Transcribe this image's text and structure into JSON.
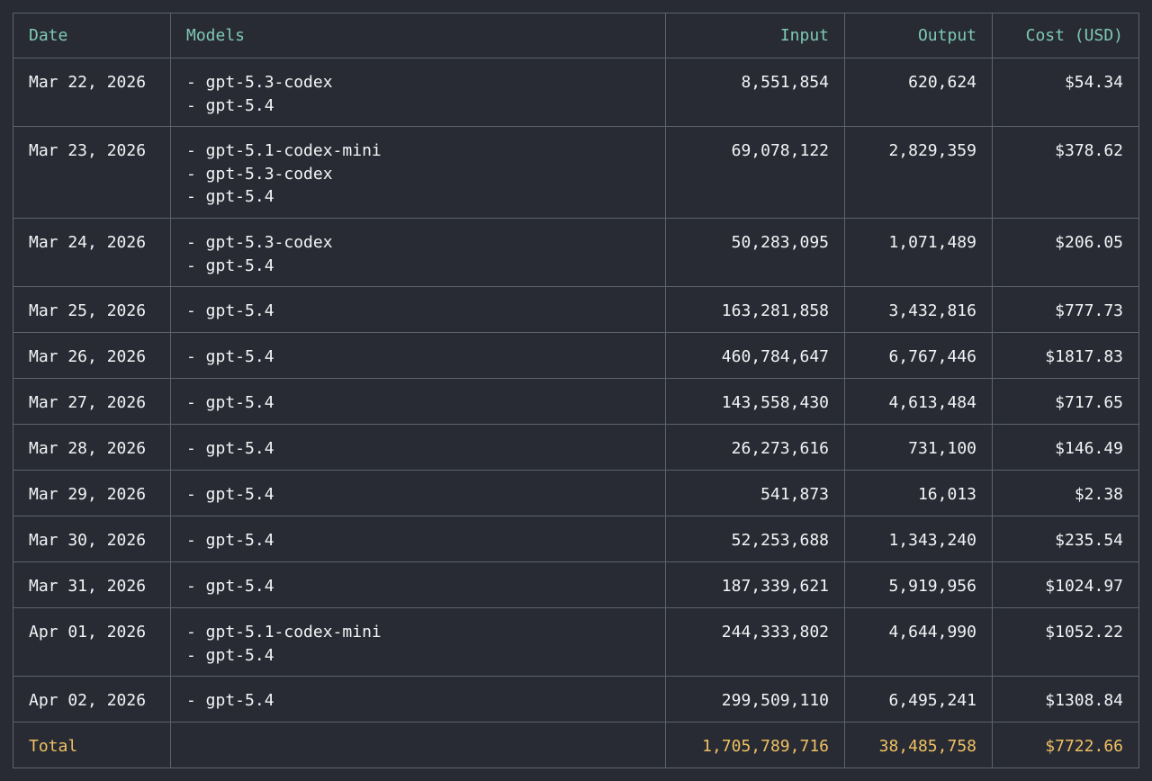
{
  "columns": {
    "date": "Date",
    "models": "Models",
    "input": "Input",
    "output": "Output",
    "cost": "Cost (USD)"
  },
  "rows": [
    {
      "date": "Mar 22, 2026",
      "models": [
        "- gpt-5.3-codex",
        "- gpt-5.4"
      ],
      "input": "8,551,854",
      "output": "620,624",
      "cost": "$54.34"
    },
    {
      "date": "Mar 23, 2026",
      "models": [
        "- gpt-5.1-codex-mini",
        "- gpt-5.3-codex",
        "- gpt-5.4"
      ],
      "input": "69,078,122",
      "output": "2,829,359",
      "cost": "$378.62"
    },
    {
      "date": "Mar 24, 2026",
      "models": [
        "- gpt-5.3-codex",
        "- gpt-5.4"
      ],
      "input": "50,283,095",
      "output": "1,071,489",
      "cost": "$206.05"
    },
    {
      "date": "Mar 25, 2026",
      "models": [
        "- gpt-5.4"
      ],
      "input": "163,281,858",
      "output": "3,432,816",
      "cost": "$777.73"
    },
    {
      "date": "Mar 26, 2026",
      "models": [
        "- gpt-5.4"
      ],
      "input": "460,784,647",
      "output": "6,767,446",
      "cost": "$1817.83"
    },
    {
      "date": "Mar 27, 2026",
      "models": [
        "- gpt-5.4"
      ],
      "input": "143,558,430",
      "output": "4,613,484",
      "cost": "$717.65"
    },
    {
      "date": "Mar 28, 2026",
      "models": [
        "- gpt-5.4"
      ],
      "input": "26,273,616",
      "output": "731,100",
      "cost": "$146.49"
    },
    {
      "date": "Mar 29, 2026",
      "models": [
        "- gpt-5.4"
      ],
      "input": "541,873",
      "output": "16,013",
      "cost": "$2.38"
    },
    {
      "date": "Mar 30, 2026",
      "models": [
        "- gpt-5.4"
      ],
      "input": "52,253,688",
      "output": "1,343,240",
      "cost": "$235.54"
    },
    {
      "date": "Mar 31, 2026",
      "models": [
        "- gpt-5.4"
      ],
      "input": "187,339,621",
      "output": "5,919,956",
      "cost": "$1024.97"
    },
    {
      "date": "Apr 01, 2026",
      "models": [
        "- gpt-5.1-codex-mini",
        "- gpt-5.4"
      ],
      "input": "244,333,802",
      "output": "4,644,990",
      "cost": "$1052.22"
    },
    {
      "date": "Apr 02, 2026",
      "models": [
        "- gpt-5.4"
      ],
      "input": "299,509,110",
      "output": "6,495,241",
      "cost": "$1308.84"
    }
  ],
  "total": {
    "label": "Total",
    "models": "",
    "input": "1,705,789,716",
    "output": "38,485,758",
    "cost": "$7722.66"
  },
  "colors": {
    "background": "#282b33",
    "border": "#5d626c",
    "header_text": "#7ec9b5",
    "total_text": "#f0c062",
    "body_text": "#f3f4f6"
  }
}
